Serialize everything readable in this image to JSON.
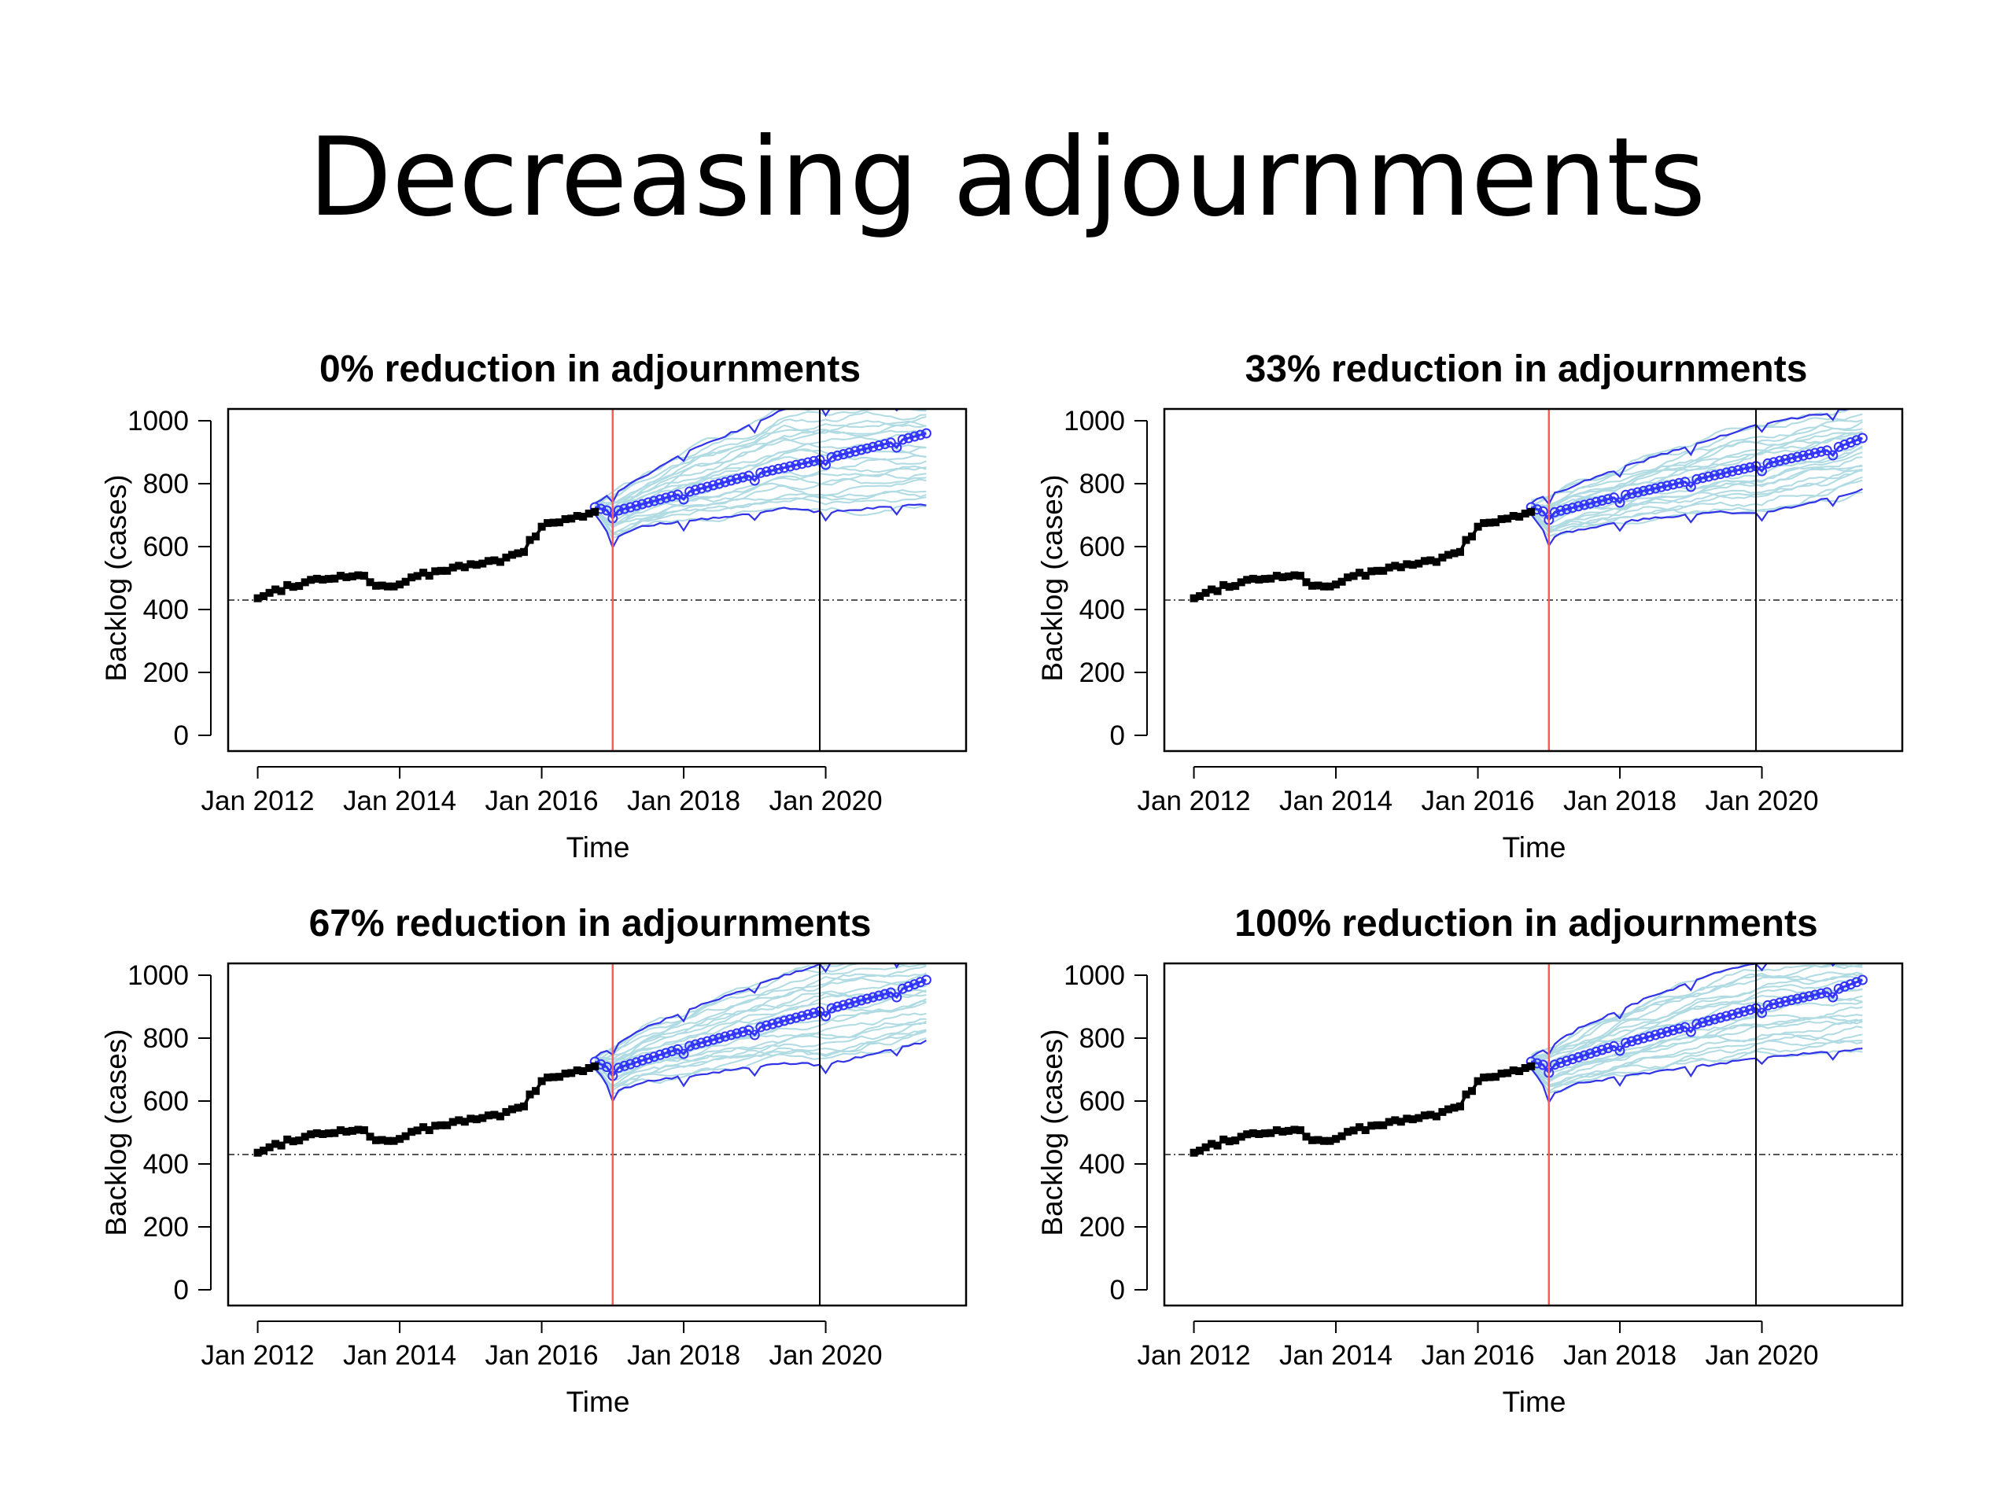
{
  "slide": {
    "title": "Decreasing adjournments"
  },
  "colors": {
    "observed": "#000000",
    "mean_projection": "#3333ff",
    "interval": "#3232e6",
    "simulations": "#b0dbe3",
    "forecast_start_line": "#ff5a5a",
    "marker_line": "#000000",
    "reference_line": "#555555"
  },
  "chart_data": [
    {
      "type": "line",
      "title": "0% reduction in adjournments",
      "xlabel": "Time",
      "ylabel": "Backlog (cases)",
      "ylim": [
        0,
        1000
      ],
      "yticks": [
        0,
        200,
        400,
        600,
        800,
        1000
      ],
      "xlim": [
        "2011-10",
        "2021-11"
      ],
      "xticks": [
        "Jan 2012",
        "Jan 2014",
        "Jan 2016",
        "Jan 2018",
        "Jan 2020"
      ],
      "reference_hline": 430,
      "forecast_start": "2017-01",
      "marker_vline": "2019-12",
      "observed": {
        "from": "2012-01",
        "to": "2016-10",
        "knots": [
          [
            "2012-01",
            440
          ],
          [
            "2012-07",
            480
          ],
          [
            "2013-01",
            500
          ],
          [
            "2013-06",
            515
          ],
          [
            "2013-09",
            475
          ],
          [
            "2014-01",
            480
          ],
          [
            "2014-06",
            515
          ],
          [
            "2015-01",
            540
          ],
          [
            "2015-06",
            560
          ],
          [
            "2015-10",
            590
          ],
          [
            "2016-01",
            660
          ],
          [
            "2016-06",
            690
          ],
          [
            "2016-10",
            710
          ]
        ]
      },
      "mean_projection": {
        "from": "2016-10",
        "to": "2021-06",
        "knots": [
          [
            "2016-10",
            725
          ],
          [
            "2017-01",
            710
          ],
          [
            "2018-01",
            770
          ],
          [
            "2019-01",
            830
          ],
          [
            "2020-01",
            880
          ],
          [
            "2021-01",
            935
          ],
          [
            "2021-06",
            960
          ]
        ]
      },
      "upper_bound": {
        "from": "2016-10",
        "to": "2021-06",
        "knots": [
          [
            "2016-10",
            740
          ],
          [
            "2017-06",
            820
          ],
          [
            "2018-01",
            900
          ],
          [
            "2019-01",
            990
          ],
          [
            "2019-06",
            1040
          ],
          [
            "2021-06",
            1060
          ]
        ]
      },
      "lower_bound": {
        "from": "2016-10",
        "to": "2021-06",
        "knots": [
          [
            "2016-10",
            705
          ],
          [
            "2017-01",
            625
          ],
          [
            "2017-06",
            665
          ],
          [
            "2018-06",
            690
          ],
          [
            "2019-06",
            720
          ],
          [
            "2020-01",
            710
          ],
          [
            "2021-06",
            735
          ]
        ]
      }
    },
    {
      "type": "line",
      "title": "33% reduction in adjournments",
      "xlabel": "Time",
      "ylabel": "Backlog (cases)",
      "ylim": [
        0,
        1000
      ],
      "yticks": [
        0,
        200,
        400,
        600,
        800,
        1000
      ],
      "xlim": [
        "2011-10",
        "2021-11"
      ],
      "xticks": [
        "Jan 2012",
        "Jan 2014",
        "Jan 2016",
        "Jan 2018",
        "Jan 2020"
      ],
      "reference_hline": 430,
      "forecast_start": "2017-01",
      "marker_vline": "2019-12",
      "observed": {
        "from": "2012-01",
        "to": "2016-10",
        "knots": [
          [
            "2012-01",
            440
          ],
          [
            "2012-07",
            480
          ],
          [
            "2013-01",
            500
          ],
          [
            "2013-06",
            515
          ],
          [
            "2013-09",
            475
          ],
          [
            "2014-01",
            480
          ],
          [
            "2014-06",
            515
          ],
          [
            "2015-01",
            540
          ],
          [
            "2015-06",
            560
          ],
          [
            "2015-10",
            590
          ],
          [
            "2016-01",
            660
          ],
          [
            "2016-06",
            690
          ],
          [
            "2016-10",
            710
          ]
        ]
      },
      "mean_projection": {
        "from": "2016-10",
        "to": "2021-06",
        "knots": [
          [
            "2016-10",
            725
          ],
          [
            "2017-01",
            705
          ],
          [
            "2018-01",
            760
          ],
          [
            "2019-01",
            810
          ],
          [
            "2020-01",
            860
          ],
          [
            "2021-01",
            910
          ],
          [
            "2021-06",
            945
          ]
        ]
      },
      "upper_bound": {
        "from": "2016-10",
        "to": "2021-06",
        "knots": [
          [
            "2016-10",
            740
          ],
          [
            "2017-06",
            800
          ],
          [
            "2018-06",
            880
          ],
          [
            "2019-06",
            950
          ],
          [
            "2020-01",
            990
          ],
          [
            "2021-06",
            1045
          ]
        ]
      },
      "lower_bound": {
        "from": "2016-10",
        "to": "2021-06",
        "knots": [
          [
            "2016-10",
            705
          ],
          [
            "2017-01",
            630
          ],
          [
            "2017-06",
            655
          ],
          [
            "2018-06",
            690
          ],
          [
            "2019-06",
            710
          ],
          [
            "2020-01",
            705
          ],
          [
            "2021-06",
            780
          ]
        ]
      }
    },
    {
      "type": "line",
      "title": "67% reduction in adjournments",
      "xlabel": "Time",
      "ylabel": "Backlog (cases)",
      "ylim": [
        0,
        1000
      ],
      "yticks": [
        0,
        200,
        400,
        600,
        800,
        1000
      ],
      "xlim": [
        "2011-10",
        "2021-11"
      ],
      "xticks": [
        "Jan 2012",
        "Jan 2014",
        "Jan 2016",
        "Jan 2018",
        "Jan 2020"
      ],
      "reference_hline": 430,
      "forecast_start": "2017-01",
      "marker_vline": "2019-12",
      "observed": {
        "from": "2012-01",
        "to": "2016-10",
        "knots": [
          [
            "2012-01",
            440
          ],
          [
            "2012-07",
            480
          ],
          [
            "2013-01",
            500
          ],
          [
            "2013-06",
            515
          ],
          [
            "2013-09",
            475
          ],
          [
            "2014-01",
            480
          ],
          [
            "2014-06",
            515
          ],
          [
            "2015-01",
            540
          ],
          [
            "2015-06",
            560
          ],
          [
            "2015-10",
            590
          ],
          [
            "2016-01",
            660
          ],
          [
            "2016-06",
            690
          ],
          [
            "2016-10",
            710
          ]
        ]
      },
      "mean_projection": {
        "from": "2016-10",
        "to": "2021-06",
        "knots": [
          [
            "2016-10",
            725
          ],
          [
            "2017-01",
            700
          ],
          [
            "2018-01",
            770
          ],
          [
            "2019-01",
            830
          ],
          [
            "2020-01",
            890
          ],
          [
            "2021-01",
            950
          ],
          [
            "2021-06",
            985
          ]
        ]
      },
      "upper_bound": {
        "from": "2016-10",
        "to": "2021-06",
        "knots": [
          [
            "2016-10",
            740
          ],
          [
            "2017-06",
            830
          ],
          [
            "2018-06",
            920
          ],
          [
            "2019-06",
            1000
          ],
          [
            "2020-01",
            1040
          ],
          [
            "2021-06",
            1060
          ]
        ]
      },
      "lower_bound": {
        "from": "2016-10",
        "to": "2021-06",
        "knots": [
          [
            "2016-10",
            705
          ],
          [
            "2017-01",
            625
          ],
          [
            "2017-06",
            660
          ],
          [
            "2018-06",
            690
          ],
          [
            "2019-06",
            720
          ],
          [
            "2020-01",
            715
          ],
          [
            "2021-06",
            790
          ]
        ]
      }
    },
    {
      "type": "line",
      "title": "100% reduction in adjournments",
      "xlabel": "Time",
      "ylabel": "Backlog (cases)",
      "ylim": [
        0,
        1000
      ],
      "yticks": [
        0,
        200,
        400,
        600,
        800,
        1000
      ],
      "xlim": [
        "2011-10",
        "2021-11"
      ],
      "xticks": [
        "Jan 2012",
        "Jan 2014",
        "Jan 2016",
        "Jan 2018",
        "Jan 2020"
      ],
      "reference_hline": 430,
      "forecast_start": "2017-01",
      "marker_vline": "2019-12",
      "observed": {
        "from": "2012-01",
        "to": "2016-10",
        "knots": [
          [
            "2012-01",
            440
          ],
          [
            "2012-07",
            480
          ],
          [
            "2013-01",
            500
          ],
          [
            "2013-06",
            515
          ],
          [
            "2013-09",
            475
          ],
          [
            "2014-01",
            480
          ],
          [
            "2014-06",
            515
          ],
          [
            "2015-01",
            540
          ],
          [
            "2015-06",
            560
          ],
          [
            "2015-10",
            590
          ],
          [
            "2016-01",
            660
          ],
          [
            "2016-06",
            690
          ],
          [
            "2016-10",
            710
          ]
        ]
      },
      "mean_projection": {
        "from": "2016-10",
        "to": "2021-06",
        "knots": [
          [
            "2016-10",
            725
          ],
          [
            "2017-01",
            710
          ],
          [
            "2018-01",
            780
          ],
          [
            "2019-01",
            840
          ],
          [
            "2020-01",
            900
          ],
          [
            "2021-01",
            950
          ],
          [
            "2021-06",
            985
          ]
        ]
      },
      "upper_bound": {
        "from": "2016-10",
        "to": "2021-06",
        "knots": [
          [
            "2016-10",
            740
          ],
          [
            "2017-06",
            830
          ],
          [
            "2018-06",
            930
          ],
          [
            "2019-06",
            1010
          ],
          [
            "2020-01",
            1040
          ],
          [
            "2021-06",
            1060
          ]
        ]
      },
      "lower_bound": {
        "from": "2016-10",
        "to": "2021-06",
        "knots": [
          [
            "2016-10",
            705
          ],
          [
            "2017-01",
            620
          ],
          [
            "2017-06",
            655
          ],
          [
            "2018-06",
            690
          ],
          [
            "2019-06",
            720
          ],
          [
            "2020-01",
            740
          ],
          [
            "2021-06",
            765
          ]
        ]
      }
    }
  ]
}
